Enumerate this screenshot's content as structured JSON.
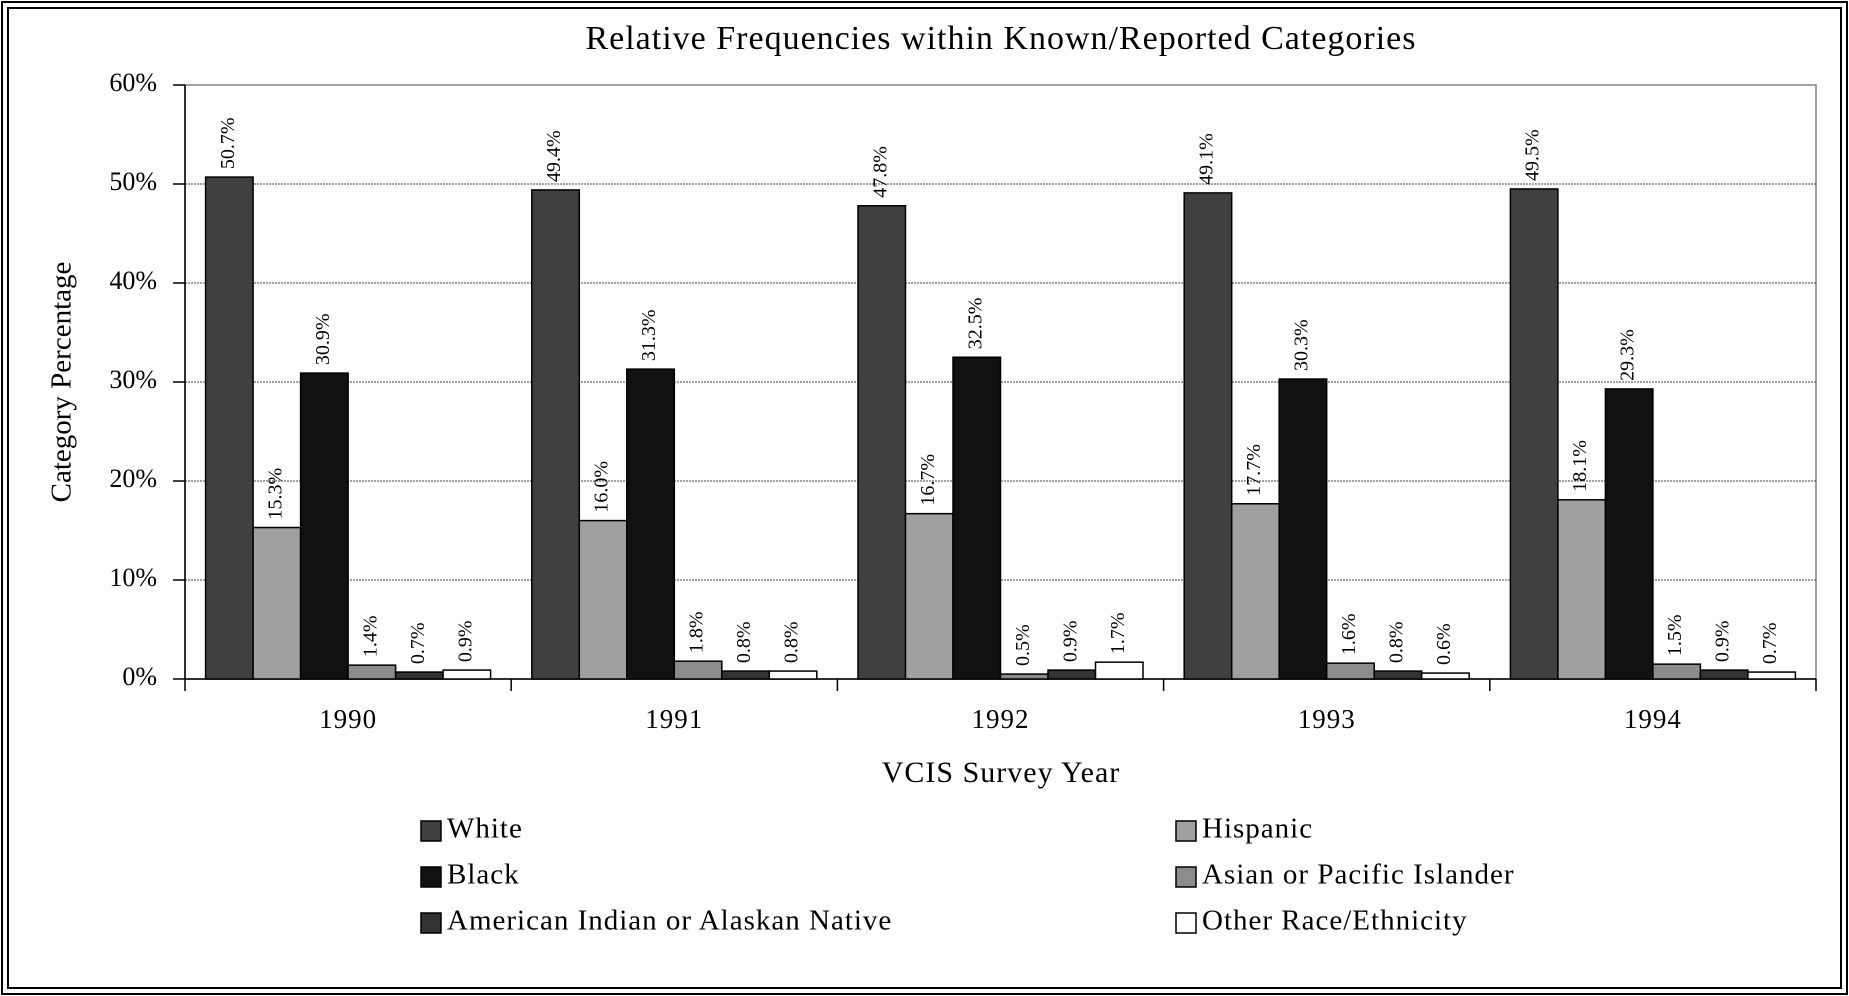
{
  "chart_data": {
    "type": "bar",
    "title": "Relative Frequencies within Known/Reported Categories",
    "xlabel": "VCIS Survey Year",
    "ylabel": "Category Percentage",
    "categories": [
      "1990",
      "1991",
      "1992",
      "1993",
      "1994"
    ],
    "series": [
      {
        "name": "White",
        "color": "#404040",
        "values": [
          50.7,
          49.4,
          47.8,
          49.1,
          49.5
        ],
        "value_labels": [
          "50.7%",
          "49.4%",
          "47.8%",
          "49.1%",
          "49.5%"
        ]
      },
      {
        "name": "Hispanic",
        "color": "#a0a0a0",
        "values": [
          15.3,
          16.0,
          16.7,
          17.7,
          18.1
        ],
        "value_labels": [
          "15.3%",
          "16.0%",
          "16.7%",
          "17.7%",
          "18.1%"
        ]
      },
      {
        "name": "Black",
        "color": "#111111",
        "values": [
          30.9,
          31.3,
          32.5,
          30.3,
          29.3
        ],
        "value_labels": [
          "30.9%",
          "31.3%",
          "32.5%",
          "30.3%",
          "29.3%"
        ]
      },
      {
        "name": "Asian or Pacific Islander",
        "color": "#8c8c8c",
        "values": [
          1.4,
          1.8,
          0.5,
          1.6,
          1.5
        ],
        "value_labels": [
          "1.4%",
          "1.8%",
          "0.5%",
          "1.6%",
          "1.5%"
        ]
      },
      {
        "name": "American Indian or Alaskan Native",
        "color": "#333333",
        "values": [
          0.7,
          0.8,
          0.9,
          0.8,
          0.9
        ],
        "value_labels": [
          "0.7%",
          "0.8%",
          "0.9%",
          "0.8%",
          "0.9%"
        ]
      },
      {
        "name": "Other Race/Ethnicity",
        "color": "#ffffff",
        "values": [
          0.9,
          0.8,
          1.7,
          0.6,
          0.7
        ],
        "value_labels": [
          "0.9%",
          "0.8%",
          "1.7%",
          "0.6%",
          "0.7%"
        ]
      }
    ],
    "ylim": [
      0,
      60
    ],
    "yticks": [
      {
        "value": 0,
        "label": "0%"
      },
      {
        "value": 10,
        "label": "10%"
      },
      {
        "value": 20,
        "label": "20%"
      },
      {
        "value": 30,
        "label": "30%"
      },
      {
        "value": 40,
        "label": "40%"
      },
      {
        "value": 50,
        "label": "50%"
      },
      {
        "value": 60,
        "label": "60%"
      }
    ],
    "grid": true
  }
}
